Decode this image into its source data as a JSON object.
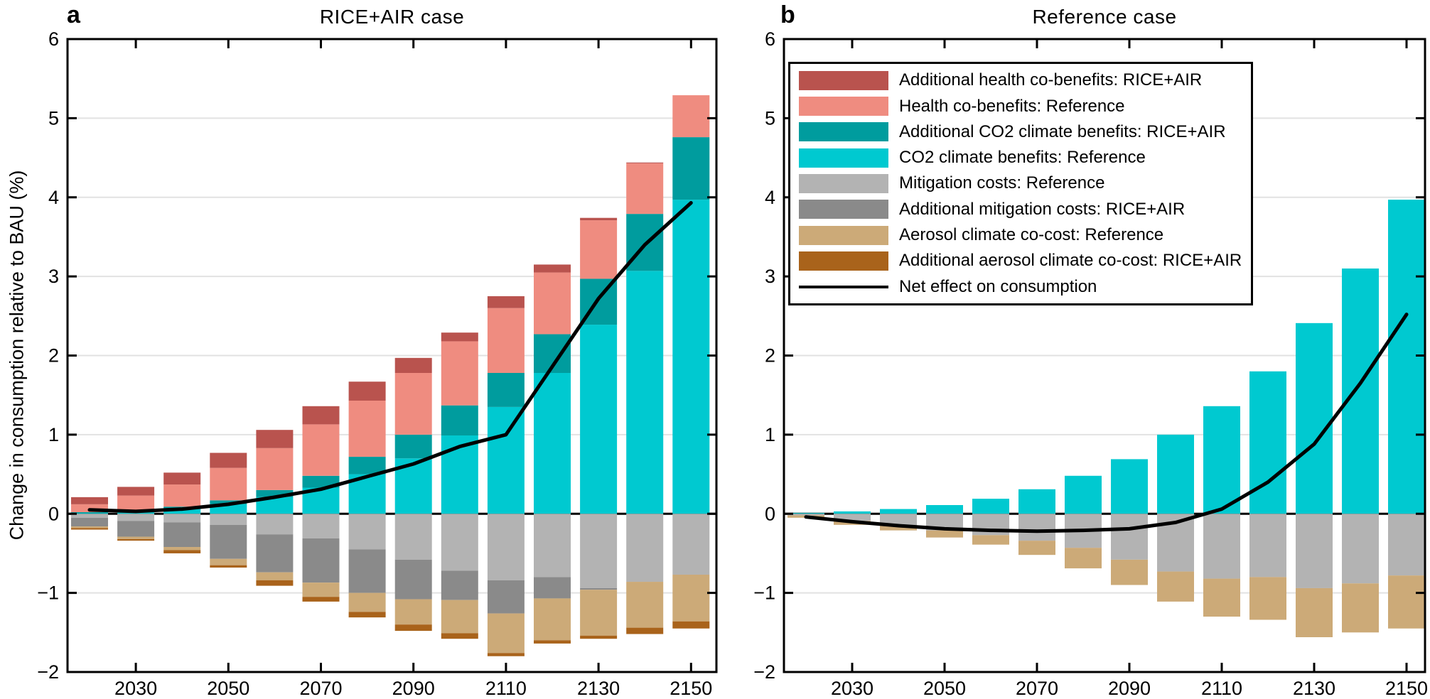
{
  "colors": {
    "darkred": "#b9534e",
    "salmon": "#ef8c80",
    "teal": "#009c9e",
    "cyan": "#00c9d0",
    "lightgray": "#b3b3b3",
    "darkgray": "#8a8a8a",
    "tan": "#ccaa78",
    "brown": "#a9631b",
    "net": "#000000",
    "grid": "#e2e2e2",
    "axis": "#000000"
  },
  "chart_data": [
    {
      "id": "a",
      "panel_letter": "a",
      "title": "RICE+AIR case",
      "type": "bar",
      "stacked": true,
      "grid": "horizontal",
      "ylabel": "Change in consumption relative to BAU (%)",
      "ylim": [
        -2,
        6
      ],
      "years": [
        2020,
        2030,
        2040,
        2050,
        2060,
        2070,
        2080,
        2090,
        2100,
        2110,
        2120,
        2130,
        2140,
        2150
      ],
      "x_tick_labels": [
        "2030",
        "2050",
        "2070",
        "2090",
        "2110",
        "2130",
        "2150"
      ],
      "x_tick_years": [
        2030,
        2050,
        2070,
        2090,
        2110,
        2130,
        2150
      ],
      "y_ticks": [
        -2,
        -1,
        0,
        1,
        2,
        3,
        4,
        5,
        6
      ],
      "y_tick_labels": [
        "−2",
        "−1",
        "0",
        "1",
        "2",
        "3",
        "4",
        "5",
        "6"
      ],
      "series": [
        {
          "name": "CO2 climate benefits: Reference",
          "color_key": "cyan",
          "sign": "pos",
          "values": [
            0.01,
            0.02,
            0.06,
            0.12,
            0.21,
            0.33,
            0.5,
            0.7,
            0.99,
            1.35,
            1.78,
            2.39,
            3.07,
            3.97
          ]
        },
        {
          "name": "Additional CO2 climate benefits: RICE+AIR",
          "color_key": "teal",
          "sign": "pos",
          "values": [
            0.01,
            0.02,
            0.03,
            0.05,
            0.09,
            0.15,
            0.22,
            0.3,
            0.38,
            0.43,
            0.49,
            0.58,
            0.72,
            0.79
          ]
        },
        {
          "name": "Health co-benefits: Reference",
          "color_key": "salmon",
          "sign": "pos",
          "values": [
            0.1,
            0.19,
            0.28,
            0.41,
            0.53,
            0.65,
            0.71,
            0.78,
            0.81,
            0.82,
            0.78,
            0.74,
            0.64,
            0.53
          ]
        },
        {
          "name": "Additional health co-benefits: RICE+AIR",
          "color_key": "darkred",
          "sign": "pos",
          "values": [
            0.09,
            0.11,
            0.15,
            0.19,
            0.23,
            0.23,
            0.24,
            0.19,
            0.11,
            0.15,
            0.1,
            0.03,
            0.01,
            0.0
          ]
        },
        {
          "name": "Mitigation costs: Reference",
          "color_key": "lightgray",
          "sign": "neg",
          "values": [
            0.05,
            0.09,
            0.11,
            0.14,
            0.26,
            0.31,
            0.45,
            0.58,
            0.72,
            0.84,
            0.8,
            0.94,
            0.86,
            0.77
          ]
        },
        {
          "name": "Additional mitigation costs: RICE+AIR",
          "color_key": "darkgray",
          "sign": "neg",
          "values": [
            0.11,
            0.2,
            0.31,
            0.43,
            0.48,
            0.56,
            0.55,
            0.5,
            0.37,
            0.42,
            0.27,
            0.02,
            0.0,
            0.0
          ]
        },
        {
          "name": "Aerosol climate co-cost: Reference",
          "color_key": "tan",
          "sign": "neg",
          "values": [
            0.02,
            0.03,
            0.04,
            0.08,
            0.1,
            0.18,
            0.24,
            0.32,
            0.42,
            0.5,
            0.53,
            0.58,
            0.58,
            0.59
          ]
        },
        {
          "name": "Additional aerosol climate co-cost: RICE+AIR",
          "color_key": "brown",
          "sign": "neg",
          "values": [
            0.02,
            0.02,
            0.04,
            0.03,
            0.07,
            0.06,
            0.07,
            0.08,
            0.07,
            0.04,
            0.04,
            0.04,
            0.08,
            0.09
          ]
        }
      ],
      "net_line": {
        "name": "Net effect on consumption",
        "values": [
          0.05,
          0.03,
          0.06,
          0.12,
          0.21,
          0.31,
          0.47,
          0.63,
          0.85,
          1.0,
          1.86,
          2.72,
          3.4,
          3.93
        ]
      }
    },
    {
      "id": "b",
      "panel_letter": "b",
      "title": "Reference case",
      "type": "bar",
      "stacked": true,
      "grid": "horizontal",
      "ylim": [
        -2,
        6
      ],
      "years": [
        2020,
        2030,
        2040,
        2050,
        2060,
        2070,
        2080,
        2090,
        2100,
        2110,
        2120,
        2130,
        2140,
        2150
      ],
      "x_tick_labels": [
        "2030",
        "2050",
        "2070",
        "2090",
        "2110",
        "2130",
        "2150"
      ],
      "x_tick_years": [
        2030,
        2050,
        2070,
        2090,
        2110,
        2130,
        2150
      ],
      "y_ticks": [
        -2,
        -1,
        0,
        1,
        2,
        3,
        4,
        5,
        6
      ],
      "y_tick_labels": [
        "−2",
        "−1",
        "0",
        "1",
        "2",
        "3",
        "4",
        "5",
        "6"
      ],
      "series": [
        {
          "name": "CO2 climate benefits: Reference",
          "color_key": "cyan",
          "sign": "pos",
          "values": [
            0.01,
            0.03,
            0.06,
            0.11,
            0.19,
            0.31,
            0.48,
            0.69,
            1.0,
            1.36,
            1.8,
            2.41,
            3.1,
            3.97
          ]
        },
        {
          "name": "Mitigation costs: Reference",
          "color_key": "lightgray",
          "sign": "neg",
          "values": [
            0.02,
            0.09,
            0.15,
            0.21,
            0.27,
            0.34,
            0.43,
            0.58,
            0.73,
            0.82,
            0.8,
            0.94,
            0.88,
            0.78
          ]
        },
        {
          "name": "Aerosol climate co-cost: Reference",
          "color_key": "tan",
          "sign": "neg",
          "values": [
            0.03,
            0.05,
            0.06,
            0.09,
            0.12,
            0.18,
            0.26,
            0.32,
            0.38,
            0.48,
            0.54,
            0.62,
            0.62,
            0.67
          ]
        }
      ],
      "net_line": {
        "name": "Net effect on consumption",
        "values": [
          -0.04,
          -0.1,
          -0.15,
          -0.19,
          -0.21,
          -0.22,
          -0.21,
          -0.19,
          -0.11,
          0.06,
          0.4,
          0.88,
          1.65,
          2.52
        ]
      },
      "legend": {
        "items": [
          {
            "label": "Additional health co-benefits: RICE+AIR",
            "color_key": "darkred",
            "kind": "swatch"
          },
          {
            "label": "Health co-benefits: Reference",
            "color_key": "salmon",
            "kind": "swatch"
          },
          {
            "label": "Additional CO2 climate benefits: RICE+AIR",
            "color_key": "teal",
            "kind": "swatch"
          },
          {
            "label": "CO2 climate benefits: Reference",
            "color_key": "cyan",
            "kind": "swatch"
          },
          {
            "label": "Mitigation costs: Reference",
            "color_key": "lightgray",
            "kind": "swatch"
          },
          {
            "label": "Additional mitigation costs: RICE+AIR",
            "color_key": "darkgray",
            "kind": "swatch"
          },
          {
            "label": "Aerosol climate co-cost: Reference",
            "color_key": "tan",
            "kind": "swatch"
          },
          {
            "label": "Additional aerosol climate co-cost: RICE+AIR",
            "color_key": "brown",
            "kind": "swatch"
          },
          {
            "label": "Net effect on consumption",
            "color_key": "net",
            "kind": "line"
          }
        ]
      }
    }
  ]
}
